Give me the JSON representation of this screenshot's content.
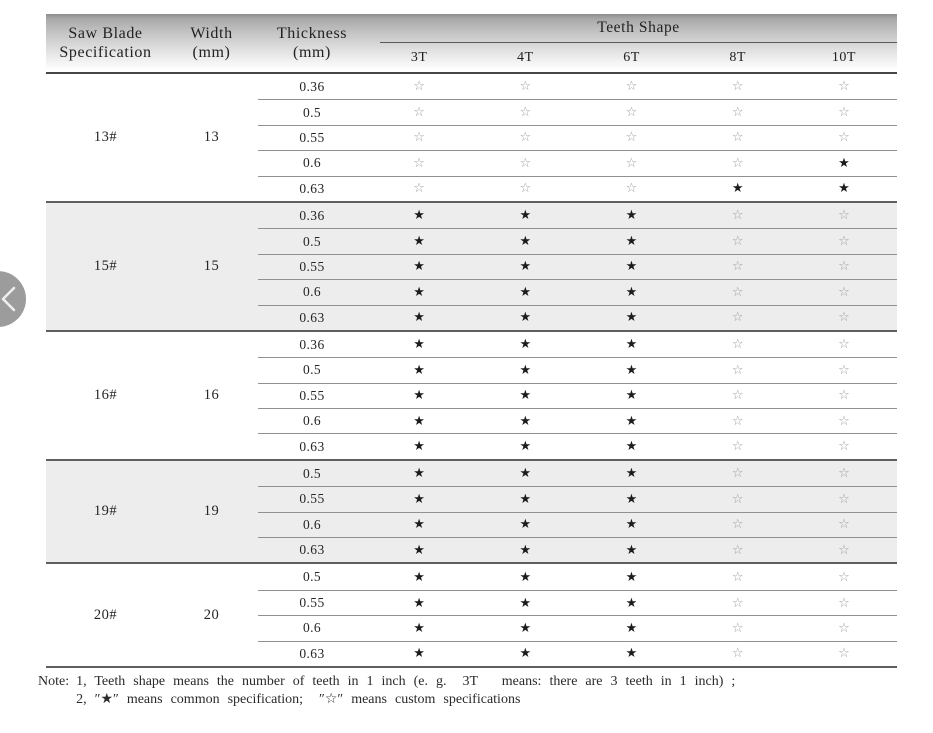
{
  "carousel": {
    "prev_button": "left-chevron"
  },
  "table": {
    "header": {
      "spec": {
        "line1": "Saw Blade",
        "line2": "Specification"
      },
      "width": {
        "line1": "Width",
        "line2": "(mm)"
      },
      "thickness": {
        "line1": "Thickness",
        "line2": "(mm)"
      },
      "teeth_title": "Teeth Shape",
      "teeth_columns": [
        "3T",
        "4T",
        "6T",
        "8T",
        "10T"
      ]
    },
    "legend": {
      "common": "★",
      "custom": "☆"
    },
    "colors": {
      "common_star": "#1c1c1c",
      "custom_star": "#9e9e9e",
      "shaded_row": "#ededed"
    },
    "groups": [
      {
        "spec": "13#",
        "width": "13",
        "shaded": false,
        "rows": [
          {
            "thickness": "0.36",
            "teeth": [
              "☆",
              "☆",
              "☆",
              "☆",
              "☆"
            ]
          },
          {
            "thickness": "0.5",
            "teeth": [
              "☆",
              "☆",
              "☆",
              "☆",
              "☆"
            ]
          },
          {
            "thickness": "0.55",
            "teeth": [
              "☆",
              "☆",
              "☆",
              "☆",
              "☆"
            ]
          },
          {
            "thickness": "0.6",
            "teeth": [
              "☆",
              "☆",
              "☆",
              "☆",
              "★"
            ]
          },
          {
            "thickness": "0.63",
            "teeth": [
              "☆",
              "☆",
              "☆",
              "★",
              "★"
            ]
          }
        ]
      },
      {
        "spec": "15#",
        "width": "15",
        "shaded": true,
        "rows": [
          {
            "thickness": "0.36",
            "teeth": [
              "★",
              "★",
              "★",
              "☆",
              "☆"
            ]
          },
          {
            "thickness": "0.5",
            "teeth": [
              "★",
              "★",
              "★",
              "☆",
              "☆"
            ]
          },
          {
            "thickness": "0.55",
            "teeth": [
              "★",
              "★",
              "★",
              "☆",
              "☆"
            ]
          },
          {
            "thickness": "0.6",
            "teeth": [
              "★",
              "★",
              "★",
              "☆",
              "☆"
            ]
          },
          {
            "thickness": "0.63",
            "teeth": [
              "★",
              "★",
              "★",
              "☆",
              "☆"
            ]
          }
        ]
      },
      {
        "spec": "16#",
        "width": "16",
        "shaded": false,
        "rows": [
          {
            "thickness": "0.36",
            "teeth": [
              "★",
              "★",
              "★",
              "☆",
              "☆"
            ]
          },
          {
            "thickness": "0.5",
            "teeth": [
              "★",
              "★",
              "★",
              "☆",
              "☆"
            ]
          },
          {
            "thickness": "0.55",
            "teeth": [
              "★",
              "★",
              "★",
              "☆",
              "☆"
            ]
          },
          {
            "thickness": "0.6",
            "teeth": [
              "★",
              "★",
              "★",
              "☆",
              "☆"
            ]
          },
          {
            "thickness": "0.63",
            "teeth": [
              "★",
              "★",
              "★",
              "☆",
              "☆"
            ]
          }
        ]
      },
      {
        "spec": "19#",
        "width": "19",
        "shaded": true,
        "rows": [
          {
            "thickness": "0.5",
            "teeth": [
              "★",
              "★",
              "★",
              "☆",
              "☆"
            ]
          },
          {
            "thickness": "0.55",
            "teeth": [
              "★",
              "★",
              "★",
              "☆",
              "☆"
            ]
          },
          {
            "thickness": "0.6",
            "teeth": [
              "★",
              "★",
              "★",
              "☆",
              "☆"
            ]
          },
          {
            "thickness": "0.63",
            "teeth": [
              "★",
              "★",
              "★",
              "☆",
              "☆"
            ]
          }
        ]
      },
      {
        "spec": "20#",
        "width": "20",
        "shaded": false,
        "rows": [
          {
            "thickness": "0.5",
            "teeth": [
              "★",
              "★",
              "★",
              "☆",
              "☆"
            ]
          },
          {
            "thickness": "0.55",
            "teeth": [
              "★",
              "★",
              "★",
              "☆",
              "☆"
            ]
          },
          {
            "thickness": "0.6",
            "teeth": [
              "★",
              "★",
              "★",
              "☆",
              "☆"
            ]
          },
          {
            "thickness": "0.63",
            "teeth": [
              "★",
              "★",
              "★",
              "☆",
              "☆"
            ]
          }
        ]
      }
    ]
  },
  "note": {
    "label": "Note:",
    "lines": [
      "1, Teeth shape means the number of teeth in 1 inch (e. g.  3T   means: there are 3 teeth in 1 inch) ;",
      "2, ″★″ means common specification;  ″☆″ means custom specifications"
    ]
  }
}
